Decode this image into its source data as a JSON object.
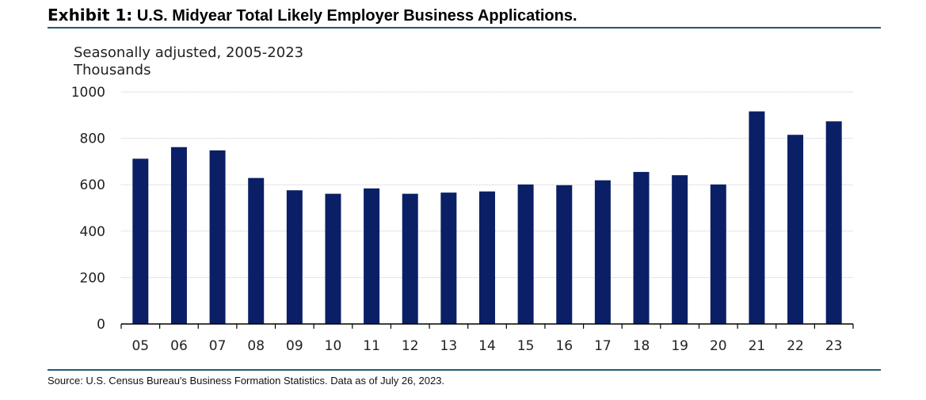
{
  "header": {
    "exhibit": "Exhibit 1:",
    "title": "U.S. Midyear Total Likely Employer Business Applications."
  },
  "subtitle": {
    "line1": "Seasonally adjusted, 2005-2023",
    "line2": "Thousands"
  },
  "source": "Source: U.S. Census Bureau's Business Formation Statistics. Data as of July 26, 2023.",
  "colors": {
    "bar": "#0b1f66",
    "rule": "#1f5a7a",
    "grid": "#c8c8c8"
  },
  "chart_data": {
    "type": "bar",
    "categories": [
      "05",
      "06",
      "07",
      "08",
      "09",
      "10",
      "11",
      "12",
      "13",
      "14",
      "15",
      "16",
      "17",
      "18",
      "19",
      "20",
      "21",
      "22",
      "23"
    ],
    "values": [
      712,
      762,
      748,
      629,
      576,
      561,
      584,
      561,
      566,
      571,
      601,
      598,
      619,
      655,
      641,
      601,
      916,
      815,
      873
    ],
    "ylim": [
      0,
      1000
    ],
    "yticks": [
      0,
      200,
      400,
      600,
      800,
      1000
    ],
    "grid": true
  }
}
